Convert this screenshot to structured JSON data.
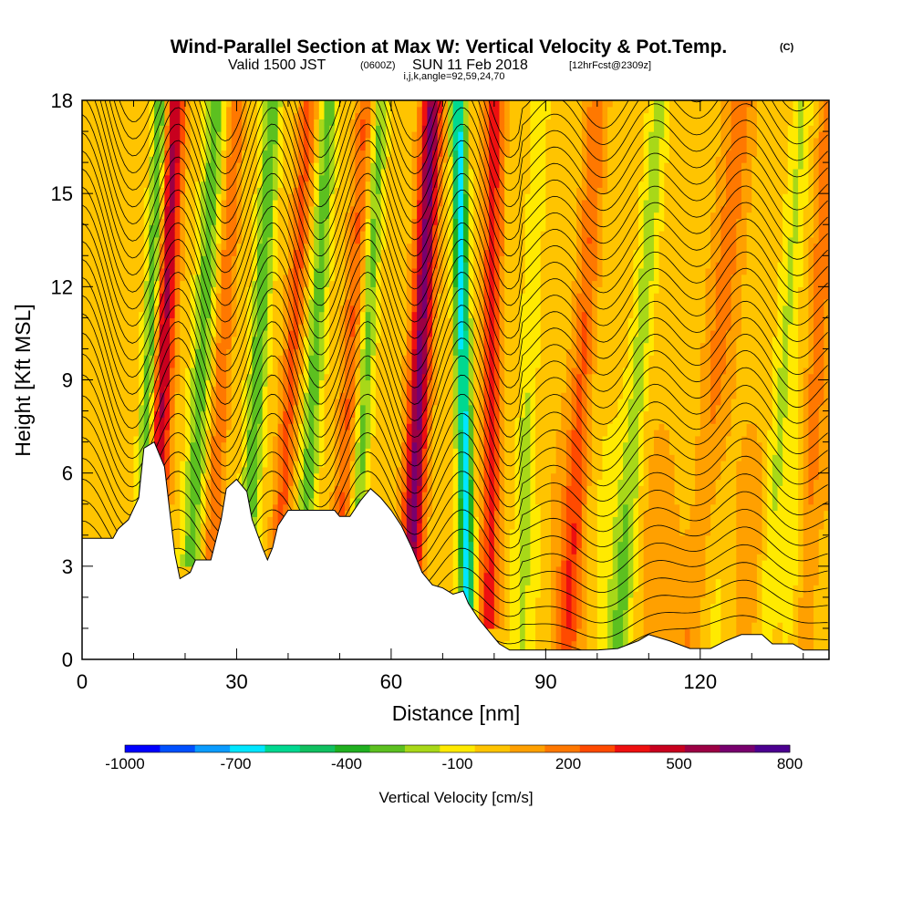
{
  "chart_data": {
    "type": "heatmap",
    "title": "Wind-Parallel Section at Max W: Vertical Velocity & Pot.Temp.",
    "copyright": "(C)",
    "subtitle_main": "Valid 1500 JST",
    "subtitle_utc": "(0600Z)",
    "subtitle_date": "SUN 11 Feb 2018",
    "subtitle_fcst": "[12hrFcst@2309z]",
    "subtitle_params": "i,j,k,angle=92,59,24,70",
    "xlabel": "Distance [nm]",
    "ylabel": "Height [Kft MSL]",
    "xlim": [
      0,
      145
    ],
    "ylim": [
      0,
      18
    ],
    "x_ticks": [
      "0",
      "30",
      "60",
      "90",
      "120"
    ],
    "x_tick_values": [
      0,
      30,
      60,
      90,
      120
    ],
    "y_ticks": [
      "0",
      "3",
      "6",
      "9",
      "12",
      "15",
      "18"
    ],
    "y_tick_values": [
      0,
      3,
      6,
      9,
      12,
      15,
      18
    ],
    "colorbar": {
      "label": "Vertical Velocity [cm/s]",
      "tick_labels": [
        "-1000",
        "-700",
        "-400",
        "-100",
        "200",
        "500",
        "800"
      ],
      "levels": [
        -1000,
        -900,
        -800,
        -700,
        -600,
        -500,
        -400,
        -300,
        -200,
        -100,
        0,
        100,
        200,
        300,
        400,
        500,
        600,
        700,
        800
      ],
      "colors": [
        "#0000ff",
        "#0050ff",
        "#0a9cff",
        "#00e6ff",
        "#00d890",
        "#10c060",
        "#20b020",
        "#5cc020",
        "#a8d818",
        "#ffea00",
        "#ffc400",
        "#ffa000",
        "#ff7800",
        "#ff4a00",
        "#ee1010",
        "#c8001e",
        "#9c0044",
        "#78006e",
        "#4c0090"
      ]
    },
    "terrain": [
      [
        0,
        3.9
      ],
      [
        6,
        3.9
      ],
      [
        7,
        4.2
      ],
      [
        9,
        4.5
      ],
      [
        11,
        5.2
      ],
      [
        12,
        6.8
      ],
      [
        14,
        7.0
      ],
      [
        16,
        6.2
      ],
      [
        17,
        4.8
      ],
      [
        18,
        3.4
      ],
      [
        19,
        2.6
      ],
      [
        21,
        2.8
      ],
      [
        22,
        3.2
      ],
      [
        25,
        3.2
      ],
      [
        27,
        4.5
      ],
      [
        28,
        5.5
      ],
      [
        30,
        5.8
      ],
      [
        32,
        5.4
      ],
      [
        33,
        4.5
      ],
      [
        35,
        3.6
      ],
      [
        36,
        3.2
      ],
      [
        37,
        3.6
      ],
      [
        38,
        4.3
      ],
      [
        40,
        4.8
      ],
      [
        45,
        4.8
      ],
      [
        49,
        4.8
      ],
      [
        50,
        4.6
      ],
      [
        52,
        4.6
      ],
      [
        54,
        5.1
      ],
      [
        56,
        5.5
      ],
      [
        58,
        5.2
      ],
      [
        60,
        4.8
      ],
      [
        62,
        4.3
      ],
      [
        64,
        3.6
      ],
      [
        66,
        2.8
      ],
      [
        68,
        2.4
      ],
      [
        70,
        2.3
      ],
      [
        72,
        2.1
      ],
      [
        74,
        2.2
      ],
      [
        75,
        1.8
      ],
      [
        77,
        1.3
      ],
      [
        79,
        0.9
      ],
      [
        81,
        0.5
      ],
      [
        83,
        0.3
      ],
      [
        86,
        0.3
      ],
      [
        100,
        0.3
      ],
      [
        104,
        0.35
      ],
      [
        108,
        0.6
      ],
      [
        110,
        0.8
      ],
      [
        114,
        0.6
      ],
      [
        118,
        0.35
      ],
      [
        122,
        0.35
      ],
      [
        125,
        0.6
      ],
      [
        128,
        0.8
      ],
      [
        132,
        0.8
      ],
      [
        134,
        0.5
      ],
      [
        138,
        0.5
      ],
      [
        140,
        0.3
      ],
      [
        145,
        0.3
      ]
    ],
    "background_velocity_cm_s": 50,
    "velocity_features": [
      {
        "kind": "bands",
        "x_top": 16,
        "x_bottom": 25,
        "y0": 4.0,
        "y1": 18,
        "comment_free": true,
        "bands": [
          [
            -9,
            -1
          ],
          [
            -5.5,
            -3
          ],
          [
            -3,
            0.5
          ],
          [
            -1.5,
            3
          ],
          [
            0,
            4.5
          ],
          [
            1.5,
            6
          ],
          [
            3,
            9
          ]
        ]
      }
    ]
  }
}
